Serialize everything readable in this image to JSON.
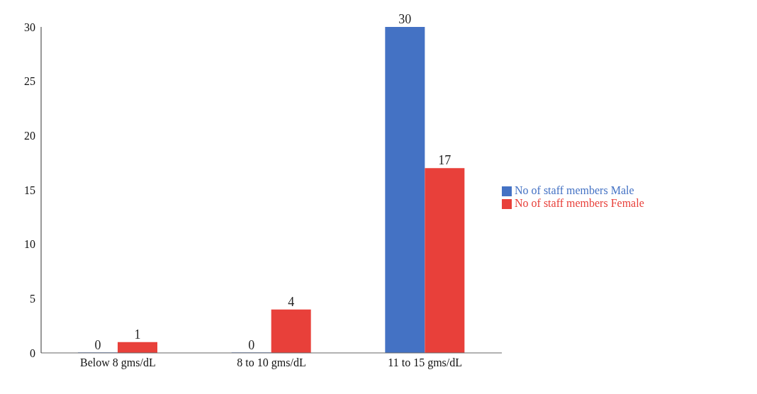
{
  "chart_data": {
    "type": "bar",
    "categories": [
      "Below 8 gms/dL",
      "8 to 10 gms/dL",
      "11 to 15 gms/dL"
    ],
    "series": [
      {
        "name": "No of staff members Male",
        "color": "#4472c4",
        "values": [
          0,
          0,
          30
        ]
      },
      {
        "name": "No of staff members Female",
        "color": "#e8403a",
        "values": [
          1,
          4,
          17
        ]
      }
    ],
    "ylim": [
      0,
      30
    ],
    "yticks": [
      0,
      5,
      10,
      15,
      20,
      25,
      30
    ],
    "grid": false,
    "legend": "right",
    "data_labels": true
  }
}
